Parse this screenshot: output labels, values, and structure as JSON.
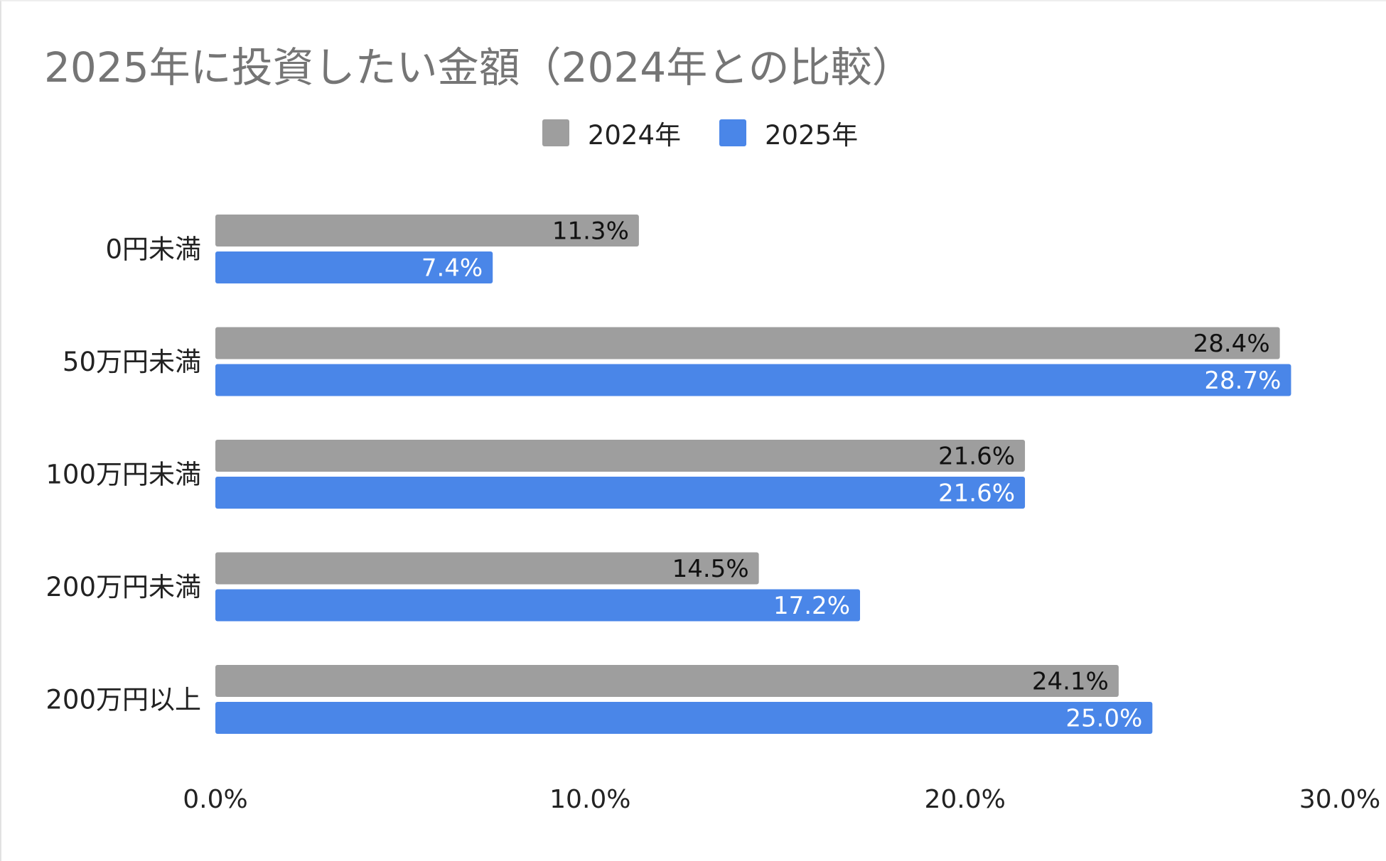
{
  "chart_data": {
    "type": "bar",
    "orientation": "horizontal",
    "title": "2025年に投資したい金額（2024年との比較）",
    "categories": [
      "0円未満",
      "50万円未満",
      "100万円未満",
      "200万円未満",
      "200万円以上"
    ],
    "series": [
      {
        "name": "2024年",
        "color": "#9e9e9e",
        "values": [
          11.3,
          28.4,
          21.6,
          14.5,
          24.1
        ],
        "labels": [
          "11.3%",
          "28.4%",
          "21.6%",
          "14.5%",
          "24.1%"
        ]
      },
      {
        "name": "2025年",
        "color": "#4a86e8",
        "values": [
          7.4,
          28.7,
          21.6,
          17.2,
          25.0
        ],
        "labels": [
          "7.4%",
          "28.7%",
          "21.6%",
          "17.2%",
          "25.0%"
        ]
      }
    ],
    "xlim": [
      0,
      30
    ],
    "x_ticks": [
      0,
      10,
      20,
      30
    ],
    "x_tick_labels": [
      "0.0%",
      "10.0%",
      "20.0%",
      "30.0%"
    ],
    "legend_position": "top-center",
    "grid": false,
    "label_colors": {
      "2024年": "#111111",
      "2025年": "#ffffff"
    }
  }
}
